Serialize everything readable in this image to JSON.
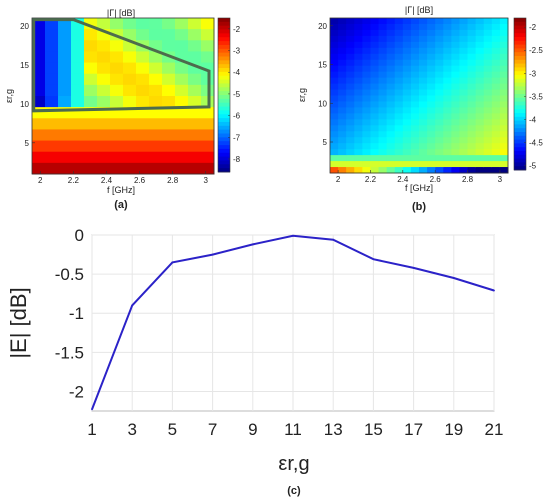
{
  "figure": {
    "panel_labels": [
      "(a)",
      "(b)",
      "(c)"
    ]
  },
  "chart_data": [
    {
      "type": "heatmap",
      "panel": "(a)",
      "title": "|Γ| [dB]",
      "xlabel": "f [GHz]",
      "ylabel": "εr,g",
      "xlim": [
        1.95,
        3.05
      ],
      "ylim": [
        1,
        21
      ],
      "xticks": [
        "2",
        "2.2",
        "2.4",
        "2.6",
        "2.8",
        "3"
      ],
      "yticks": [
        "5",
        "10",
        "15",
        "20"
      ],
      "colorbar": {
        "min": -8.6,
        "max": -1.5,
        "ticks": [
          "-2",
          "-3",
          "-4",
          "-5",
          "-6",
          "-7",
          "-8"
        ],
        "colormap": "jet"
      },
      "annotation": {
        "type": "polygon",
        "color": "#4d6b4d",
        "vertices": [
          [
            1.96,
            20.8
          ],
          [
            2.2,
            20.8
          ],
          [
            3.02,
            14.2
          ],
          [
            3.02,
            9.6
          ],
          [
            1.96,
            9.1
          ]
        ]
      }
    },
    {
      "type": "heatmap",
      "panel": "(b)",
      "title": "|Γ| [dB]",
      "xlabel": "f [GHz]",
      "ylabel": "εr,g",
      "xlim": [
        1.95,
        3.05
      ],
      "ylim": [
        1,
        21
      ],
      "xticks": [
        "2",
        "2.2",
        "2.4",
        "2.6",
        "2.8",
        "3"
      ],
      "yticks": [
        "5",
        "10",
        "15",
        "20"
      ],
      "colorbar": {
        "min": -5.1,
        "max": -1.8,
        "ticks": [
          "-2",
          "-2.5",
          "-3",
          "-3.5",
          "-4",
          "-4.5",
          "-5"
        ],
        "colormap": "jet"
      }
    },
    {
      "type": "line",
      "panel": "(c)",
      "xlabel": "εr,g",
      "ylabel": "|E| [dB]",
      "xlim": [
        1,
        21
      ],
      "ylim": [
        -2.25,
        0
      ],
      "grid": true,
      "xticks": [
        "1",
        "3",
        "5",
        "7",
        "9",
        "11",
        "13",
        "15",
        "17",
        "19",
        "21"
      ],
      "yticks": [
        "0",
        "-0.5",
        "-1",
        "-1.5",
        "-2"
      ],
      "series": [
        {
          "color": "#2b22c8",
          "x": [
            1,
            3,
            5,
            7,
            9,
            11,
            13,
            15,
            17,
            19,
            21
          ],
          "y": [
            -2.23,
            -0.9,
            -0.35,
            -0.25,
            -0.12,
            -0.01,
            -0.06,
            -0.31,
            -0.42,
            -0.55,
            -0.71
          ]
        }
      ]
    }
  ]
}
